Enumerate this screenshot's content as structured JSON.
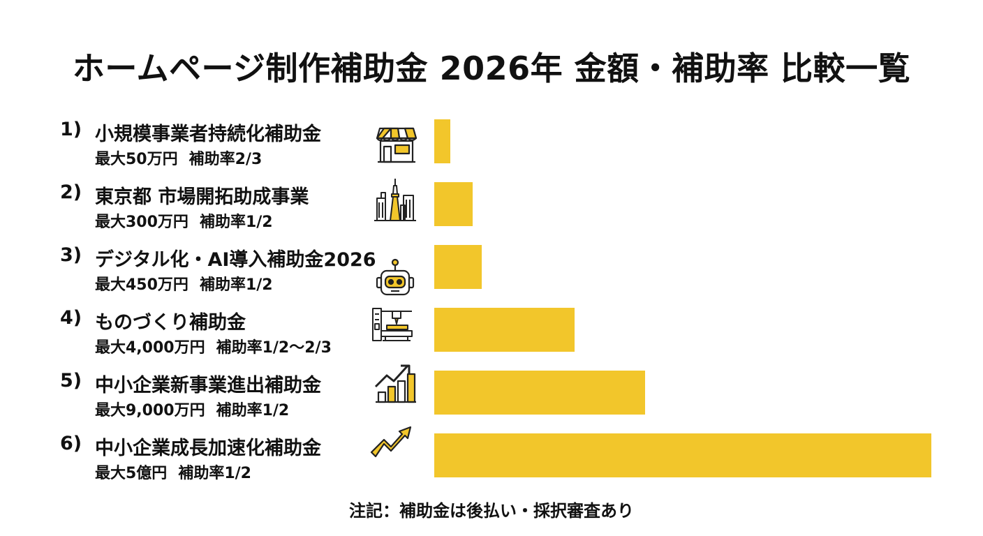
{
  "title": "ホームページ制作補助金 2026年 金額・補助率 比較一覧",
  "note": "注記：補助金は後払い・採択審査あり",
  "colors": {
    "bar": "#f2c62b",
    "text": "#111111",
    "background": "#ffffff"
  },
  "chart_data": {
    "type": "bar",
    "orientation": "horizontal",
    "unit": "万円",
    "categories": [
      "小規模事業者持続化補助金",
      "東京都 市場開拓助成事業",
      "デジタル化・AI導入補助金2026",
      "ものづくり補助金",
      "中小企業新事業進出補助金",
      "中小企業成長加速化補助金"
    ],
    "values": [
      50,
      300,
      450,
      4000,
      9000,
      50000
    ],
    "items": [
      {
        "num": "1)",
        "name": "小規模事業者持続化補助金",
        "max": "最大50万円",
        "rate": "補助率2/3",
        "icon": "storefront-icon"
      },
      {
        "num": "2)",
        "name": "東京都 市場開拓助成事業",
        "max": "最大300万円",
        "rate": "補助率1/2",
        "icon": "tokyo-skyline-icon"
      },
      {
        "num": "3)",
        "name": "デジタル化・AI導入補助金2026",
        "max": "最大450万円",
        "rate": "補助率1/2",
        "icon": "robot-icon"
      },
      {
        "num": "4)",
        "name": "ものづくり補助金",
        "max": "最大4,000万円",
        "rate": "補助率1/2〜2/3",
        "icon": "cnc-machine-icon"
      },
      {
        "num": "5)",
        "name": "中小企業新事業進出補助金",
        "max": "最大9,000万円",
        "rate": "補助率1/2",
        "icon": "growth-chart-icon"
      },
      {
        "num": "6)",
        "name": "中小企業成長加速化補助金",
        "max": "最大5億円",
        "rate": "補助率1/2",
        "icon": "trend-arrow-icon"
      }
    ]
  }
}
